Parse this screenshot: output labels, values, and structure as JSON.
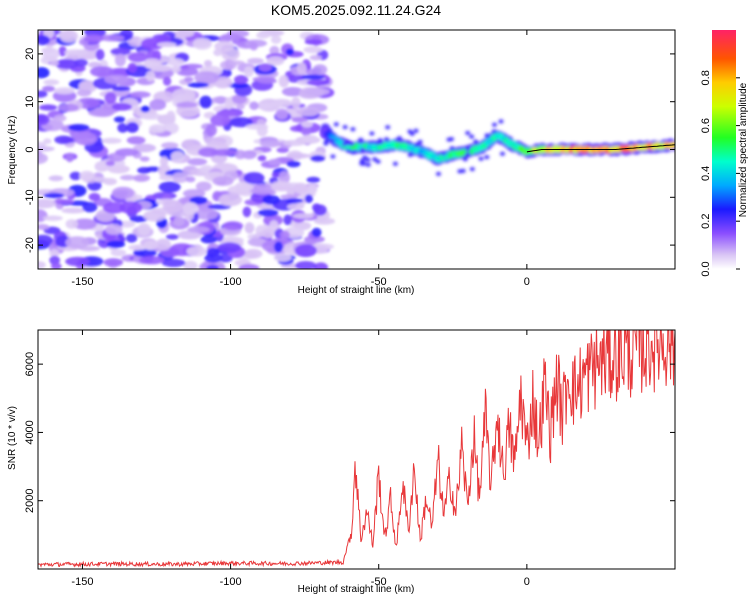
{
  "title": "KOM5.2025.092.11.24.G24",
  "top_panel": {
    "xlabel": "Height of straight line (km)",
    "ylabel": "Frequency (Hz)",
    "xlim": [
      -165,
      50
    ],
    "ylim": [
      -25,
      25
    ],
    "xticks": [
      -150,
      -100,
      -50,
      0
    ],
    "yticks": [
      -20,
      -10,
      0,
      10,
      20
    ],
    "colorbar": {
      "label": "Normalized spectral amplitude",
      "ticks": [
        "0.0",
        "0.2",
        "0.4",
        "0.6",
        "0.8"
      ],
      "range": [
        0,
        1
      ]
    }
  },
  "chart_data": [
    {
      "type": "heatmap",
      "title": "KOM5.2025.092.11.24.G24",
      "xlabel": "Height of straight line (km)",
      "ylabel": "Frequency (Hz)",
      "xlim": [
        -165,
        50
      ],
      "ylim": [
        -25,
        25
      ],
      "noise_region_x": [
        -165,
        -68
      ],
      "ridge": {
        "x": [
          -68,
          -65,
          -60,
          -55,
          -50,
          -45,
          -40,
          -35,
          -30,
          -25,
          -20,
          -15,
          -10,
          -5,
          0,
          5,
          10,
          20,
          30,
          40,
          50
        ],
        "y": [
          4,
          2,
          0.5,
          0.5,
          0.5,
          1,
          0.5,
          -0.5,
          -2,
          -1,
          -0.5,
          0.5,
          3,
          1,
          -0.5,
          0,
          0,
          0,
          0,
          0.5,
          1
        ],
        "amplitude": [
          0.15,
          0.35,
          0.55,
          0.5,
          0.45,
          0.5,
          0.45,
          0.4,
          0.45,
          0.5,
          0.55,
          0.45,
          0.5,
          0.45,
          0.6,
          0.75,
          0.8,
          0.85,
          0.85,
          0.85,
          0.8
        ]
      }
    },
    {
      "type": "line",
      "xlabel": "Height of straight line (km)",
      "ylabel": "SNR (10 * v/v)",
      "xlim": [
        -165,
        50
      ],
      "ylim": [
        0,
        7000
      ],
      "xticks": [
        -150,
        -100,
        -50,
        0
      ],
      "yticks": [
        2000,
        4000,
        6000
      ],
      "color": "#e8383a",
      "series": [
        {
          "x": [
            -165,
            -140,
            -120,
            -100,
            -80,
            -62,
            -59,
            -58,
            -56,
            -54,
            -52,
            -50,
            -48,
            -46,
            -44,
            -42,
            -40,
            -38,
            -36,
            -34,
            -32,
            -30,
            -28,
            -26,
            -24,
            -22,
            -20,
            -18,
            -16,
            -14,
            -12,
            -10,
            -8,
            -6,
            -4,
            -2,
            0,
            2,
            4,
            6,
            8,
            10,
            12,
            14,
            16,
            20,
            25,
            30,
            35,
            40,
            45,
            48,
            50
          ],
          "y": [
            130,
            150,
            140,
            170,
            160,
            200,
            1200,
            3200,
            900,
            1700,
            700,
            2800,
            900,
            2000,
            600,
            2600,
            1100,
            3000,
            800,
            2100,
            1200,
            3200,
            1500,
            2700,
            1600,
            3600,
            1800,
            3900,
            2100,
            4400,
            2400,
            4600,
            2800,
            4100,
            3100,
            5200,
            3500,
            5000,
            3700,
            5400,
            4000,
            5600,
            4500,
            5800,
            5200,
            5700,
            6100,
            6300,
            6400,
            6600,
            6700,
            6800,
            6500
          ]
        }
      ]
    }
  ],
  "bottom_panel": {
    "xlabel": "Height of straight line (km)",
    "ylabel": "SNR (10 * v/v)",
    "xticks": [
      -150,
      -100,
      -50,
      0
    ],
    "yticks": [
      2000,
      4000,
      6000
    ]
  }
}
